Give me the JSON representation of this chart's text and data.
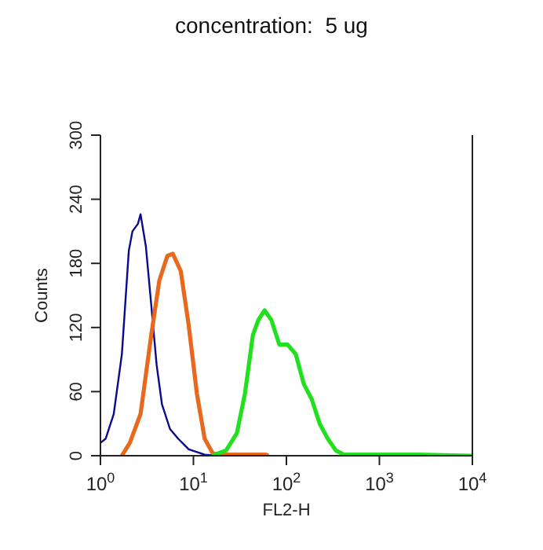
{
  "chart_data": {
    "type": "line",
    "title": "concentration:  5 ug",
    "xlabel": "FL2-H",
    "ylabel": "Counts",
    "log": "x",
    "xlim": [
      1,
      10000
    ],
    "xticks": [
      {
        "value": 1,
        "label": "10$^{0}$"
      },
      {
        "value": 10,
        "label": "10$^{1}$"
      },
      {
        "value": 100,
        "label": "10$^{2}$"
      },
      {
        "value": 1000,
        "label": "10$^{3}$"
      },
      {
        "value": 10000,
        "label": "10$^{4}$"
      }
    ],
    "ylim": [
      0,
      300
    ],
    "yticks": [
      0,
      60,
      120,
      180,
      240,
      300
    ],
    "grid": false,
    "marker": "none",
    "line_style": "solid",
    "series": [
      {
        "color": "#0a0a8c",
        "x": [
          1,
          1.14,
          1.39,
          1.7,
          2.02,
          2.21,
          2.53,
          2.7,
          3.08,
          3.52,
          4.02,
          4.59,
          5.6,
          6.84,
          8.9,
          13.2,
          17.3
        ],
        "values": [
          12,
          16,
          39,
          95,
          192,
          210,
          217,
          226,
          196,
          141,
          85,
          48,
          25,
          16,
          6,
          1,
          0
        ]
      },
      {
        "color": "#e8691e",
        "x": [
          1.7,
          2.07,
          2.7,
          3.52,
          4.3,
          5.25,
          6.0,
          7.3,
          8.9,
          10.9,
          13.2,
          16.2,
          19.8,
          60,
          64
        ],
        "values": [
          0,
          12,
          39,
          113,
          164,
          187,
          189,
          173,
          122,
          58,
          16,
          2,
          1,
          1,
          0
        ]
      },
      {
        "color": "#22e020",
        "x": [
          16,
          22.5,
          29.3,
          35.8,
          43.6,
          49.9,
          58.3,
          68.9,
          83.9,
          103,
          126,
          154,
          187,
          228,
          278,
          340,
          414,
          2660,
          10000
        ],
        "values": [
          0,
          5,
          21,
          58,
          113,
          127,
          136,
          127,
          104,
          104,
          95,
          67,
          53,
          30,
          16,
          5,
          1,
          1,
          0
        ]
      }
    ]
  }
}
